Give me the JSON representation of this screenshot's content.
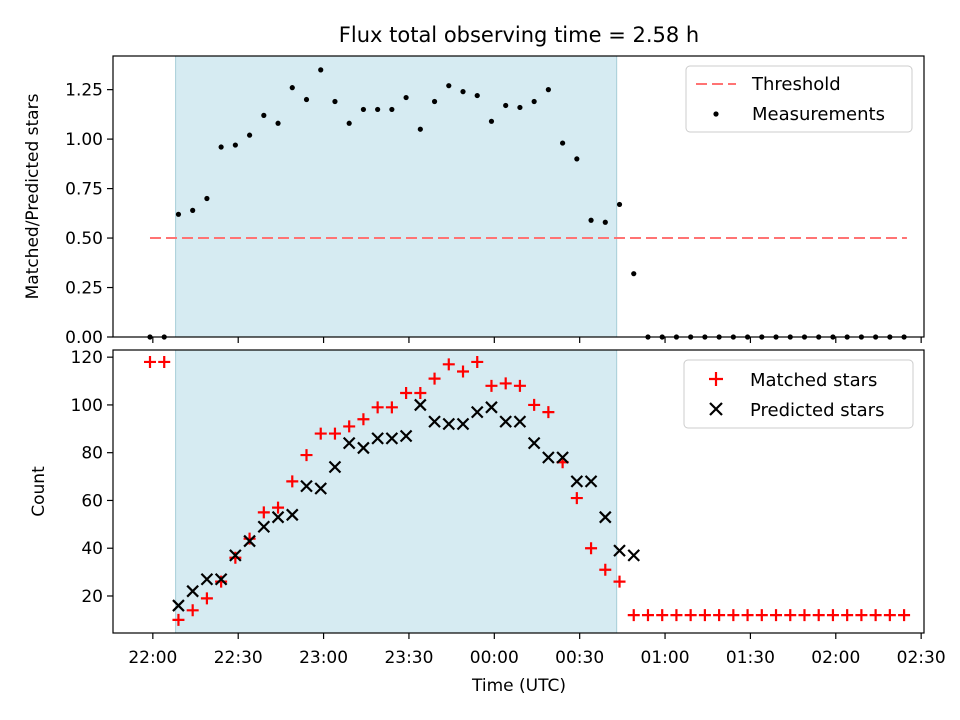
{
  "chart_data": [
    {
      "type": "scatter",
      "title": "Flux total observing time = 2.58 h",
      "xlabel": "",
      "ylabel": "Matched/Predicted stars",
      "ylim": [
        0,
        1.42
      ],
      "yticks": [
        "0.00",
        "0.25",
        "0.50",
        "0.75",
        "1.00",
        "1.25"
      ],
      "ytick_values": [
        0,
        0.25,
        0.5,
        0.75,
        1.0,
        1.25
      ],
      "legend_position": "top-right",
      "observing_window_minutes": [
        8,
        163
      ],
      "threshold": {
        "name": "Threshold",
        "value": 0.5,
        "x_range_minutes": [
          -1,
          265
        ],
        "color": "#ff7373",
        "style": "dashed"
      },
      "series": [
        {
          "name": "Measurements",
          "color": "#000000",
          "marker": "dot",
          "x_minutes": [
            -1,
            4,
            9,
            14,
            19,
            24,
            29,
            34,
            39,
            44,
            49,
            54,
            59,
            64,
            69,
            74,
            79,
            84,
            89,
            94,
            99,
            104,
            109,
            114,
            119,
            124,
            129,
            134,
            139,
            144,
            149,
            154,
            159,
            164,
            169,
            174,
            179,
            184,
            189,
            194,
            199,
            204,
            209,
            214,
            219,
            224,
            229,
            234,
            239,
            244,
            249,
            254,
            259,
            264
          ],
          "values": [
            0,
            0,
            0.62,
            0.64,
            0.7,
            0.96,
            0.97,
            1.02,
            1.12,
            1.08,
            1.26,
            1.2,
            1.35,
            1.19,
            1.08,
            1.15,
            1.15,
            1.15,
            1.21,
            1.05,
            1.19,
            1.27,
            1.24,
            1.22,
            1.09,
            1.17,
            1.16,
            1.19,
            1.25,
            0.98,
            0.9,
            0.59,
            0.58,
            0.67,
            0.32,
            0,
            0,
            0,
            0,
            0,
            0,
            0,
            0,
            0,
            0,
            0,
            0,
            0,
            0,
            0,
            0,
            0,
            0,
            0
          ]
        }
      ]
    },
    {
      "type": "scatter",
      "title": "",
      "xlabel": "Time (UTC)",
      "ylabel": "Count",
      "ylim": [
        4.5,
        123
      ],
      "yticks": [
        "20",
        "40",
        "60",
        "80",
        "100",
        "120"
      ],
      "ytick_values": [
        20,
        40,
        60,
        80,
        100,
        120
      ],
      "xlim_minutes": [
        -14,
        271
      ],
      "xticks": [
        "22:00",
        "22:30",
        "23:00",
        "23:30",
        "00:00",
        "00:30",
        "01:00",
        "01:30",
        "02:00",
        "02:30"
      ],
      "xtick_minutes": [
        0,
        30,
        60,
        90,
        120,
        150,
        180,
        210,
        240,
        270
      ],
      "legend_position": "top-right",
      "observing_window_minutes": [
        8,
        163
      ],
      "series": [
        {
          "name": "Matched stars",
          "color": "#ff0000",
          "marker": "plus",
          "x_minutes": [
            -1,
            4,
            9,
            14,
            19,
            24,
            29,
            34,
            39,
            44,
            49,
            54,
            59,
            64,
            69,
            74,
            79,
            84,
            89,
            94,
            99,
            104,
            109,
            114,
            119,
            124,
            129,
            134,
            139,
            144,
            149,
            154,
            159,
            164,
            169,
            174,
            179,
            184,
            189,
            194,
            199,
            204,
            209,
            214,
            219,
            224,
            229,
            234,
            239,
            244,
            249,
            254,
            259,
            264
          ],
          "values": [
            118,
            118,
            10,
            14,
            19,
            26,
            36,
            44,
            55,
            57,
            68,
            79,
            88,
            88,
            91,
            94,
            99,
            99,
            105,
            105,
            111,
            117,
            114,
            118,
            108,
            109,
            108,
            100,
            97,
            76,
            61,
            40,
            31,
            26,
            12,
            12,
            12,
            12,
            12,
            12,
            12,
            12,
            12,
            12,
            12,
            12,
            12,
            12,
            12,
            12,
            12,
            12,
            12,
            12
          ]
        },
        {
          "name": "Predicted stars",
          "color": "#000000",
          "marker": "x",
          "x_minutes": [
            9,
            14,
            19,
            24,
            29,
            34,
            39,
            44,
            49,
            54,
            59,
            64,
            69,
            74,
            79,
            84,
            89,
            94,
            99,
            104,
            109,
            114,
            119,
            124,
            129,
            134,
            139,
            144,
            149,
            154,
            159,
            164,
            169
          ],
          "values": [
            16,
            22,
            27,
            27,
            37,
            43,
            49,
            53,
            54,
            66,
            65,
            74,
            84,
            82,
            86,
            86,
            87,
            100,
            93,
            92,
            92,
            97,
            99,
            93,
            93,
            84,
            78,
            78,
            68,
            68,
            53,
            39,
            37
          ]
        }
      ]
    }
  ]
}
